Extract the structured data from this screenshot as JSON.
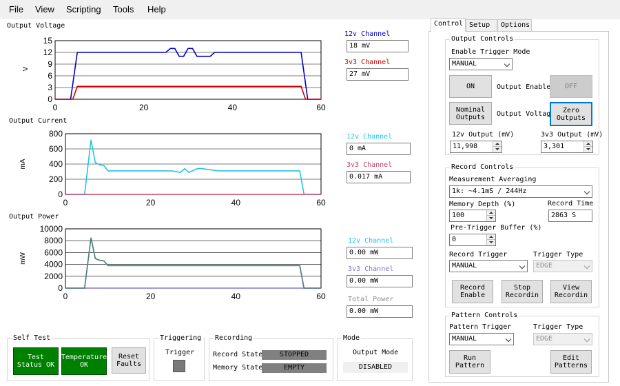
{
  "menu": {
    "items": [
      "File",
      "View",
      "Scripting",
      "Tools",
      "Help"
    ]
  },
  "charts": [
    {
      "title": "Output Voltage",
      "ylabel": "V",
      "xlim": [
        0,
        60
      ],
      "ylim": [
        0,
        15
      ],
      "yticks": [
        0,
        3,
        6,
        9,
        12,
        15
      ],
      "xticks": [
        0,
        20,
        40,
        60
      ],
      "series": [
        {
          "name": "12v Channel",
          "color": "#0000cc",
          "readout": "18 mV",
          "x": [
            0,
            3.5,
            5,
            25,
            26,
            27,
            28,
            29,
            30,
            31,
            32,
            35,
            36,
            55.5,
            57,
            60
          ],
          "y": [
            0,
            0,
            12,
            12,
            13,
            13,
            11,
            11,
            13,
            13,
            11,
            11,
            12,
            12,
            0,
            0
          ]
        },
        {
          "name": "3v3 Channel",
          "color": "#cc0000",
          "readout": "27 mV",
          "x": [
            0,
            4,
            5,
            55.5,
            56.5,
            60
          ],
          "y": [
            0,
            0,
            3.3,
            3.3,
            0,
            0
          ]
        }
      ]
    },
    {
      "title": "Output Current",
      "ylabel": "mA",
      "xlim": [
        0,
        60
      ],
      "ylim": [
        0,
        800
      ],
      "yticks": [
        0,
        200,
        400,
        600,
        800
      ],
      "xticks": [
        0,
        20,
        40,
        60
      ],
      "series": [
        {
          "name": "12v Channel",
          "color": "#22c4e8",
          "readout": "0 mA",
          "x": [
            0,
            4.5,
            6,
            7,
            8,
            9,
            10,
            25,
            27,
            28,
            29,
            31,
            32,
            36,
            37,
            55,
            56,
            60
          ],
          "y": [
            0,
            0,
            720,
            420,
            390,
            380,
            310,
            310,
            290,
            340,
            290,
            340,
            340,
            310,
            310,
            310,
            0,
            0
          ]
        },
        {
          "name": "3v3 Channel",
          "color": "#cc4466",
          "readout": "0.017 mA",
          "x": [
            0,
            60
          ],
          "y": [
            0,
            0
          ]
        }
      ]
    },
    {
      "title": "Output Power",
      "ylabel": "mW",
      "xlim": [
        0,
        60
      ],
      "ylim": [
        0,
        10000
      ],
      "yticks": [
        0,
        2000,
        4000,
        6000,
        8000,
        10000
      ],
      "xticks": [
        0,
        20,
        40,
        60
      ],
      "series": [
        {
          "name": "12v Channel",
          "color": "#22c4e8",
          "readout": "0.00 mW",
          "x": [
            0,
            4.5,
            6,
            7,
            8,
            9,
            10,
            55,
            56,
            60
          ],
          "y": [
            0,
            0,
            8500,
            5000,
            4700,
            4600,
            3800,
            3800,
            0,
            0
          ]
        },
        {
          "name": "3v3 Channel",
          "color": "#8877cc",
          "readout": "0.00 mW",
          "x": [
            0,
            60
          ],
          "y": [
            0,
            0
          ]
        },
        {
          "name": "Total Power",
          "color": "#5a7a7a",
          "readout": "0.00 mW",
          "x": [
            0,
            4.5,
            6,
            7,
            8,
            9,
            10,
            55,
            56,
            60
          ],
          "y": [
            0,
            0,
            8500,
            5000,
            4700,
            4600,
            3800,
            3800,
            0,
            0
          ]
        }
      ]
    }
  ],
  "total_power_label": "Total Power",
  "self_test": {
    "title": "Self Test",
    "test_status": "Test Status OK",
    "temperature": "Temperature OK",
    "reset_label": "Reset Faults"
  },
  "triggering": {
    "title": "Triggering",
    "trigger_label": "Trigger"
  },
  "recording": {
    "title": "Recording",
    "record_state_label": "Record State:",
    "record_state_value": "STOPPED",
    "memory_state_label": "Memory State",
    "memory_state_value": "EMPTY"
  },
  "mode": {
    "title": "Mode",
    "output_mode_label": "Output Mode",
    "output_mode_value": "DISABLED"
  },
  "tabs": [
    "Control",
    "Setup",
    "Options"
  ],
  "output_controls": {
    "title": "Output Controls",
    "trigger_mode_label": "Enable Trigger Mode",
    "trigger_mode_value": "MANUAL",
    "on_label": "ON",
    "output_enable_label": "Output Enable",
    "off_label": "OFF",
    "nominal_label": "Nominal Outputs",
    "output_voltage_label": "Output Voltage",
    "zero_label": "Zero Outputs",
    "v12_label": "12v Output (mV)",
    "v12_value": "11,998",
    "v33_label": "3v3 Output (mV)",
    "v33_value": "3,301"
  },
  "record_controls": {
    "title": "Record Controls",
    "averaging_label": "Measurement Averaging",
    "averaging_value": "1k: ~4.1mS / 244Hz",
    "depth_label": "Memory Depth (%)",
    "depth_value": "100",
    "record_time_label": "Record Time",
    "record_time_value": "2863 S",
    "pretrigger_label": "Pre-Trigger Buffer (%)",
    "pretrigger_value": "0",
    "record_trigger_label": "Record Trigger",
    "record_trigger_value": "MANUAL",
    "trigger_type_label": "Trigger Type",
    "trigger_type_value": "EDGE",
    "record_enable_label": "Record Enable",
    "stop_record_label": "Stop Recordin",
    "view_record_label": "View Recordin"
  },
  "pattern_controls": {
    "title": "Pattern Controls",
    "pattern_trigger_label": "Pattern Trigger",
    "pattern_trigger_value": "MANUAL",
    "trigger_type_label": "Trigger Type",
    "trigger_type_value": "EDGE",
    "run_label": "Run Pattern",
    "edit_label": "Edit Patterns"
  }
}
